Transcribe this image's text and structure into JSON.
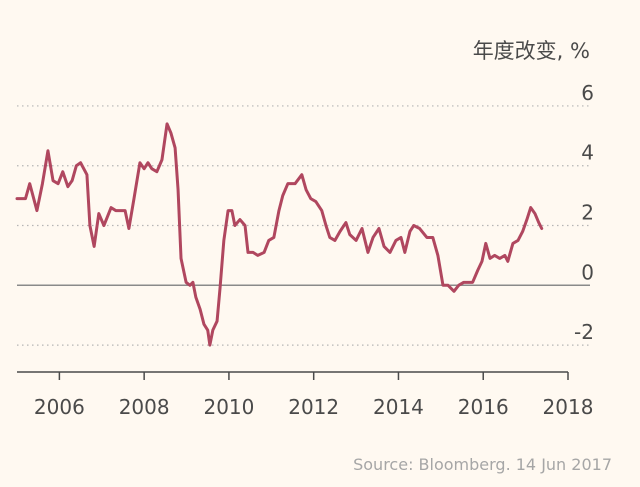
{
  "chart_data": {
    "type": "line",
    "y_label": "年度改变, %",
    "source": "Source: Bloomberg. 14 Jun 2017",
    "color": "#b0475f",
    "grid": true,
    "xlim": [
      2005,
      2018
    ],
    "xticks": [
      2006,
      2008,
      2010,
      2012,
      2014,
      2016,
      2018
    ],
    "ylim": [
      -2.9,
      6.6
    ],
    "yticks": [
      6,
      4,
      2,
      0,
      -2
    ],
    "x": [
      2005.0,
      2005.2,
      2005.3,
      2005.47,
      2005.6,
      2005.73,
      2005.85,
      2005.97,
      2006.08,
      2006.2,
      2006.3,
      2006.4,
      2006.5,
      2006.65,
      2006.72,
      2006.82,
      2006.93,
      2007.05,
      2007.22,
      2007.33,
      2007.45,
      2007.55,
      2007.64,
      2007.76,
      2007.9,
      2008.0,
      2008.09,
      2008.18,
      2008.3,
      2008.42,
      2008.54,
      2008.63,
      2008.73,
      2008.8,
      2008.87,
      2008.99,
      2009.08,
      2009.15,
      2009.22,
      2009.32,
      2009.41,
      2009.5,
      2009.55,
      2009.62,
      2009.72,
      2009.79,
      2009.88,
      2009.98,
      2010.07,
      2010.14,
      2010.26,
      2010.38,
      2010.45,
      2010.57,
      2010.68,
      2010.83,
      2010.94,
      2011.06,
      2011.18,
      2011.27,
      2011.39,
      2011.56,
      2011.72,
      2011.82,
      2011.93,
      2012.05,
      2012.19,
      2012.29,
      2012.38,
      2012.5,
      2012.62,
      2012.76,
      2012.85,
      2013.0,
      2013.14,
      2013.28,
      2013.4,
      2013.54,
      2013.66,
      2013.8,
      2013.94,
      2014.06,
      2014.15,
      2014.27,
      2014.36,
      2014.5,
      2014.67,
      2014.81,
      2014.93,
      2015.05,
      2015.17,
      2015.31,
      2015.42,
      2015.54,
      2015.66,
      2015.75,
      2015.87,
      2015.97,
      2016.06,
      2016.16,
      2016.27,
      2016.39,
      2016.51,
      2016.58,
      2016.7,
      2016.82,
      2016.93,
      2017.03,
      2017.12,
      2017.22,
      2017.31,
      2017.38
    ],
    "values": [
      2.9,
      2.9,
      3.4,
      2.5,
      3.4,
      4.5,
      3.5,
      3.4,
      3.8,
      3.3,
      3.5,
      4.0,
      4.1,
      3.7,
      2.0,
      1.3,
      2.4,
      2.0,
      2.6,
      2.5,
      2.5,
      2.5,
      1.9,
      2.9,
      4.1,
      3.9,
      4.1,
      3.9,
      3.8,
      4.2,
      5.4,
      5.1,
      4.6,
      3.2,
      0.9,
      0.1,
      0.0,
      0.1,
      -0.4,
      -0.8,
      -1.3,
      -1.5,
      -2.0,
      -1.5,
      -1.2,
      -0.1,
      1.5,
      2.5,
      2.5,
      2.0,
      2.2,
      2.0,
      1.1,
      1.1,
      1.0,
      1.1,
      1.5,
      1.6,
      2.5,
      3.0,
      3.4,
      3.4,
      3.7,
      3.2,
      2.9,
      2.8,
      2.5,
      2.0,
      1.6,
      1.5,
      1.8,
      2.1,
      1.7,
      1.5,
      1.9,
      1.1,
      1.6,
      1.9,
      1.3,
      1.1,
      1.5,
      1.6,
      1.1,
      1.8,
      2.0,
      1.9,
      1.6,
      1.6,
      1.0,
      0.0,
      0.0,
      -0.2,
      0.0,
      0.1,
      0.1,
      0.1,
      0.5,
      0.8,
      1.4,
      0.9,
      1.0,
      0.9,
      1.0,
      0.8,
      1.4,
      1.5,
      1.8,
      2.2,
      2.6,
      2.4,
      2.1,
      1.9
    ]
  }
}
